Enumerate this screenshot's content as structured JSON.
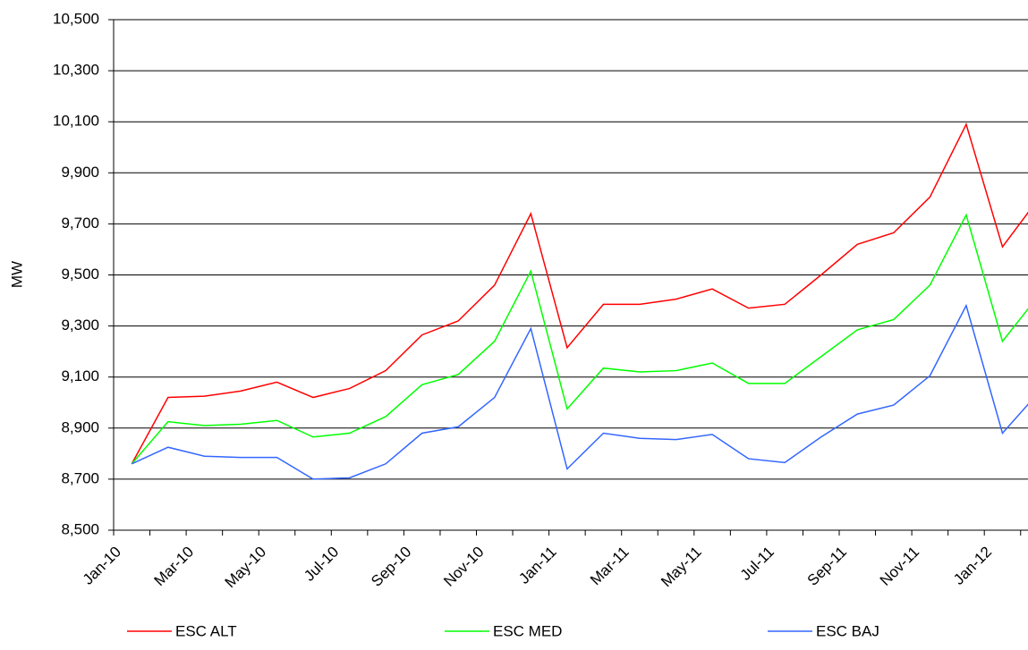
{
  "chart_data": {
    "type": "line",
    "y_label": "MW",
    "categories": [
      "Jan-10",
      null,
      "Mar-10",
      null,
      "May-10",
      null,
      "Jul-10",
      null,
      "Sep-10",
      null,
      "Nov-10",
      null,
      "Jan-11",
      null,
      "Mar-11",
      null,
      "May-11",
      null,
      "Jul-11",
      null,
      "Sep-11",
      null,
      "Nov-11",
      null,
      "Jan-12",
      null
    ],
    "series": [
      {
        "name": "ESC ALT",
        "color": "#ff0000",
        "values": [
          8760,
          9020,
          9025,
          9045,
          9080,
          9020,
          9055,
          9125,
          9265,
          9320,
          9460,
          9740,
          9215,
          9385,
          9385,
          9405,
          9445,
          9370,
          9385,
          9500,
          9620,
          9665,
          9805,
          10090,
          9610,
          9800
        ]
      },
      {
        "name": "ESC MED",
        "color": "#00ff00",
        "values": [
          8760,
          8925,
          8910,
          8915,
          8930,
          8865,
          8880,
          8945,
          9070,
          9110,
          9240,
          9515,
          8975,
          9135,
          9120,
          9125,
          9155,
          9075,
          9075,
          9180,
          9285,
          9325,
          9460,
          9735,
          9240,
          9420
        ]
      },
      {
        "name": "ESC BAJ",
        "color": "#3366ff",
        "values": [
          8760,
          8825,
          8790,
          8785,
          8785,
          8700,
          8705,
          8760,
          8880,
          8905,
          9020,
          9290,
          8740,
          8880,
          8860,
          8855,
          8875,
          8780,
          8765,
          8865,
          8955,
          8990,
          9105,
          9380,
          8880,
          9040
        ]
      }
    ],
    "ylim": [
      8500,
      10500
    ],
    "yticks": [
      {
        "value": 8500,
        "label": "8,500"
      },
      {
        "value": 8700,
        "label": "8,700"
      },
      {
        "value": 8900,
        "label": "8,900"
      },
      {
        "value": 9100,
        "label": "9,100"
      },
      {
        "value": 9300,
        "label": "9,300"
      },
      {
        "value": 9500,
        "label": "9,500"
      },
      {
        "value": 9700,
        "label": "9,700"
      },
      {
        "value": 9900,
        "label": "9,900"
      },
      {
        "value": 10100,
        "label": "10,100"
      },
      {
        "value": 10300,
        "label": "10,300"
      },
      {
        "value": 10500,
        "label": "10,500"
      }
    ],
    "grid": true
  }
}
